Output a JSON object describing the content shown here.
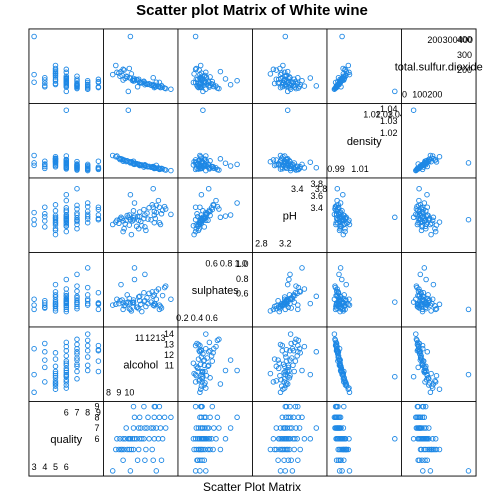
{
  "chart_data": {
    "type": "scatter",
    "title": "Scatter plot Matrix of White wine",
    "xlabel": "Scatter Plot Matrix",
    "point_color": "#1E88E5",
    "variables": [
      {
        "key": "quality",
        "label": "quality",
        "range": [
          2.8,
          9.2
        ],
        "ticks_lo": [
          "3",
          "4",
          "5",
          "6"
        ],
        "ticks_lo_values": [
          3,
          4,
          5,
          6
        ],
        "ticks_hi": [
          "6",
          "7",
          "8",
          "9"
        ],
        "ticks_hi_values": [
          6,
          7,
          8,
          9
        ],
        "ticks_hi_row": [
          "6",
          "7",
          "8",
          "9"
        ],
        "ticks_hi_row_values": [
          6,
          7,
          8,
          9
        ]
      },
      {
        "key": "alcohol",
        "label": "alcohol",
        "range": [
          7.8,
          14.4
        ],
        "ticks_lo": [
          "8",
          "9",
          "10"
        ],
        "ticks_lo_values": [
          8,
          9,
          10
        ],
        "ticks_hi": [
          "11",
          "12",
          "13"
        ],
        "ticks_hi_values": [
          11,
          12,
          13
        ],
        "ticks_hi_row": [
          "11",
          "12",
          "13",
          "14"
        ],
        "ticks_hi_row_values": [
          11,
          12,
          13,
          14
        ]
      },
      {
        "key": "sulphates",
        "label": "sulphates",
        "range": [
          0.18,
          1.12
        ],
        "ticks_lo": [
          "0.2",
          "0.4",
          "0.6"
        ],
        "ticks_lo_values": [
          0.2,
          0.4,
          0.6
        ],
        "ticks_hi": [
          "0.6",
          "0.8",
          "1.0"
        ],
        "ticks_hi_values": [
          0.6,
          0.8,
          1.0
        ],
        "ticks_hi_row": [
          "0.6",
          "0.8",
          "1.0"
        ],
        "ticks_hi_row_values": [
          0.6,
          0.8,
          1.0
        ]
      },
      {
        "key": "pH",
        "label": "pH",
        "range": [
          2.7,
          3.85
        ],
        "ticks_lo": [
          "2.8",
          "3.2"
        ],
        "ticks_lo_values": [
          2.8,
          3.2
        ],
        "ticks_hi": [
          "3.4",
          "3.8"
        ],
        "ticks_hi_values": [
          3.4,
          3.8
        ],
        "ticks_hi_row": [
          "3.4",
          "3.6",
          "3.8"
        ],
        "ticks_hi_row_values": [
          3.4,
          3.6,
          3.8
        ]
      },
      {
        "key": "density",
        "label": "density",
        "range": [
          0.985,
          1.042
        ],
        "ticks_lo": [
          "0.99",
          "1.01"
        ],
        "ticks_lo_values": [
          0.99,
          1.01
        ],
        "ticks_hi": [
          "1.02",
          "1.03",
          "1.04"
        ],
        "ticks_hi_values": [
          1.02,
          1.03,
          1.04
        ],
        "ticks_hi_row": [
          "1.02",
          "1.03",
          "1.04"
        ],
        "ticks_hi_row_values": [
          1.02,
          1.03,
          1.04
        ]
      },
      {
        "key": "tsd",
        "label": "total.sulfur.dioxide",
        "range": [
          0,
          450
        ],
        "ticks_lo": [
          "0",
          "100",
          "200"
        ],
        "ticks_lo_values": [
          0,
          100,
          200
        ],
        "ticks_hi": [
          "200",
          "300",
          "400"
        ],
        "ticks_hi_values": [
          200,
          300,
          400
        ],
        "ticks_hi_row": [
          "200",
          "300",
          "400"
        ],
        "ticks_hi_row_values": [
          200,
          300,
          400
        ]
      }
    ],
    "series": [
      {
        "quality": 3,
        "alcohol": 8.4,
        "sulphates": 0.44,
        "pH": 3.12,
        "density": 1.0012,
        "tsd": 170
      },
      {
        "quality": 3,
        "alcohol": 10.1,
        "sulphates": 0.38,
        "pH": 3.2,
        "density": 0.9951,
        "tsd": 420
      },
      {
        "quality": 3,
        "alcohol": 12.6,
        "sulphates": 0.52,
        "pH": 3.32,
        "density": 0.993,
        "tsd": 120
      },
      {
        "quality": 4,
        "alcohol": 9.4,
        "sulphates": 0.47,
        "pH": 3.18,
        "density": 0.9965,
        "tsd": 135
      },
      {
        "quality": 4,
        "alcohol": 10.8,
        "sulphates": 0.41,
        "pH": 3.25,
        "density": 0.9942,
        "tsd": 90
      },
      {
        "quality": 4,
        "alcohol": 11.5,
        "sulphates": 0.5,
        "pH": 3.08,
        "density": 0.9935,
        "tsd": 115
      },
      {
        "quality": 4,
        "alcohol": 12.3,
        "sulphates": 0.44,
        "pH": 3.41,
        "density": 0.9921,
        "tsd": 150
      },
      {
        "quality": 4,
        "alcohol": 13.1,
        "sulphates": 0.4,
        "pH": 3.3,
        "density": 0.9905,
        "tsd": 98
      },
      {
        "quality": 5,
        "alcohol": 9.0,
        "sulphates": 0.46,
        "pH": 3.14,
        "density": 0.999,
        "tsd": 180
      },
      {
        "quality": 5,
        "alcohol": 9.3,
        "sulphates": 0.51,
        "pH": 3.22,
        "density": 0.9982,
        "tsd": 165
      },
      {
        "quality": 5,
        "alcohol": 9.5,
        "sulphates": 0.43,
        "pH": 3.05,
        "density": 0.9975,
        "tsd": 200
      },
      {
        "quality": 5,
        "alcohol": 9.8,
        "sulphates": 0.58,
        "pH": 3.27,
        "density": 0.9968,
        "tsd": 155
      },
      {
        "quality": 5,
        "alcohol": 10.0,
        "sulphates": 0.39,
        "pH": 3.11,
        "density": 0.9959,
        "tsd": 210
      },
      {
        "quality": 5,
        "alcohol": 10.4,
        "sulphates": 0.48,
        "pH": 3.35,
        "density": 0.995,
        "tsd": 140
      },
      {
        "quality": 5,
        "alcohol": 10.9,
        "sulphates": 0.55,
        "pH": 3.19,
        "density": 0.9941,
        "tsd": 128
      },
      {
        "quality": 5,
        "alcohol": 11.6,
        "sulphates": 0.42,
        "pH": 3.02,
        "density": 0.9929,
        "tsd": 112
      },
      {
        "quality": 5,
        "alcohol": 12.2,
        "sulphates": 0.62,
        "pH": 3.45,
        "density": 0.9918,
        "tsd": 105
      },
      {
        "quality": 5,
        "alcohol": 8.7,
        "sulphates": 0.45,
        "pH": 3.16,
        "density": 1.0002,
        "tsd": 230
      },
      {
        "quality": 5,
        "alcohol": 9.2,
        "sulphates": 0.72,
        "pH": 3.24,
        "density": 0.9985,
        "tsd": 190
      },
      {
        "quality": 5,
        "alcohol": 10.2,
        "sulphates": 0.36,
        "pH": 2.95,
        "density": 0.9961,
        "tsd": 175
      },
      {
        "quality": 6,
        "alcohol": 9.1,
        "sulphates": 0.5,
        "pH": 3.21,
        "density": 0.9979,
        "tsd": 160
      },
      {
        "quality": 6,
        "alcohol": 9.6,
        "sulphates": 0.44,
        "pH": 3.13,
        "density": 0.997,
        "tsd": 145
      },
      {
        "quality": 6,
        "alcohol": 10.0,
        "sulphates": 0.53,
        "pH": 3.28,
        "density": 0.996,
        "tsd": 150
      },
      {
        "quality": 6,
        "alcohol": 10.3,
        "sulphates": 0.47,
        "pH": 3.18,
        "density": 0.9953,
        "tsd": 132
      },
      {
        "quality": 6,
        "alcohol": 10.7,
        "sulphates": 0.41,
        "pH": 3.09,
        "density": 0.9945,
        "tsd": 138
      },
      {
        "quality": 6,
        "alcohol": 11.0,
        "sulphates": 0.56,
        "pH": 3.33,
        "density": 0.9937,
        "tsd": 120
      },
      {
        "quality": 6,
        "alcohol": 11.4,
        "sulphates": 0.49,
        "pH": 3.22,
        "density": 0.9931,
        "tsd": 126
      },
      {
        "quality": 6,
        "alcohol": 11.9,
        "sulphates": 0.6,
        "pH": 3.4,
        "density": 0.9922,
        "tsd": 110
      },
      {
        "quality": 6,
        "alcohol": 12.4,
        "sulphates": 0.43,
        "pH": 3.15,
        "density": 0.9915,
        "tsd": 102
      },
      {
        "quality": 6,
        "alcohol": 12.8,
        "sulphates": 0.66,
        "pH": 3.52,
        "density": 0.9909,
        "tsd": 95
      },
      {
        "quality": 6,
        "alcohol": 9.4,
        "sulphates": 0.38,
        "pH": 3.0,
        "density": 0.9976,
        "tsd": 205
      },
      {
        "quality": 6,
        "alcohol": 10.5,
        "sulphates": 0.79,
        "pH": 3.26,
        "density": 0.9948,
        "tsd": 142
      },
      {
        "quality": 6,
        "alcohol": 11.2,
        "sulphates": 0.35,
        "pH": 3.1,
        "density": 0.9934,
        "tsd": 118
      },
      {
        "quality": 6,
        "alcohol": 10.1,
        "sulphates": 0.46,
        "pH": 3.62,
        "density": 0.9957,
        "tsd": 148
      },
      {
        "quality": 6,
        "alcohol": 8.8,
        "sulphates": 0.52,
        "pH": 3.19,
        "density": 1.0008,
        "tsd": 185
      },
      {
        "quality": 6,
        "alcohol": 9.9,
        "sulphates": 0.48,
        "pH": 3.24,
        "density": 1.0389,
        "tsd": 60
      },
      {
        "quality": 6,
        "alcohol": 13.2,
        "sulphates": 0.57,
        "pH": 3.36,
        "density": 0.9901,
        "tsd": 88
      },
      {
        "quality": 7,
        "alcohol": 10.4,
        "sulphates": 0.51,
        "pH": 3.23,
        "density": 0.9942,
        "tsd": 128
      },
      {
        "quality": 7,
        "alcohol": 11.1,
        "sulphates": 0.45,
        "pH": 3.17,
        "density": 0.993,
        "tsd": 115
      },
      {
        "quality": 7,
        "alcohol": 11.7,
        "sulphates": 0.54,
        "pH": 3.31,
        "density": 0.9921,
        "tsd": 108
      },
      {
        "quality": 7,
        "alcohol": 12.1,
        "sulphates": 0.48,
        "pH": 3.2,
        "density": 0.9914,
        "tsd": 100
      },
      {
        "quality": 7,
        "alcohol": 12.6,
        "sulphates": 0.63,
        "pH": 3.44,
        "density": 0.9906,
        "tsd": 92
      },
      {
        "quality": 7,
        "alcohol": 13.0,
        "sulphates": 0.42,
        "pH": 3.12,
        "density": 0.9899,
        "tsd": 85
      },
      {
        "quality": 7,
        "alcohol": 13.5,
        "sulphates": 0.7,
        "pH": 3.38,
        "density": 0.9892,
        "tsd": 78
      },
      {
        "quality": 7,
        "alcohol": 10.9,
        "sulphates": 0.39,
        "pH": 3.05,
        "density": 0.9935,
        "tsd": 140
      },
      {
        "quality": 7,
        "alcohol": 11.5,
        "sulphates": 0.86,
        "pH": 3.28,
        "density": 0.9925,
        "tsd": 104
      },
      {
        "quality": 7,
        "alcohol": 12.3,
        "sulphates": 0.56,
        "pH": 3.72,
        "density": 0.9911,
        "tsd": 96
      },
      {
        "quality": 7,
        "alcohol": 9.7,
        "sulphates": 0.47,
        "pH": 3.19,
        "density": 0.9962,
        "tsd": 160
      },
      {
        "quality": 8,
        "alcohol": 11.0,
        "sulphates": 0.5,
        "pH": 3.25,
        "density": 0.9928,
        "tsd": 118
      },
      {
        "quality": 8,
        "alcohol": 11.8,
        "sulphates": 0.46,
        "pH": 3.21,
        "density": 0.9918,
        "tsd": 106
      },
      {
        "quality": 8,
        "alcohol": 12.4,
        "sulphates": 0.58,
        "pH": 3.34,
        "density": 0.9909,
        "tsd": 98
      },
      {
        "quality": 8,
        "alcohol": 12.9,
        "sulphates": 0.44,
        "pH": 3.15,
        "density": 0.9902,
        "tsd": 90
      },
      {
        "quality": 8,
        "alcohol": 13.4,
        "sulphates": 0.68,
        "pH": 3.42,
        "density": 0.9895,
        "tsd": 82
      },
      {
        "quality": 8,
        "alcohol": 14.0,
        "sulphates": 0.52,
        "pH": 3.29,
        "density": 0.9887,
        "tsd": 74
      },
      {
        "quality": 8,
        "alcohol": 10.5,
        "sulphates": 0.95,
        "pH": 3.48,
        "density": 0.9938,
        "tsd": 130
      },
      {
        "quality": 9,
        "alcohol": 12.4,
        "sulphates": 0.46,
        "pH": 3.28,
        "density": 0.9904,
        "tsd": 85
      },
      {
        "quality": 9,
        "alcohol": 12.9,
        "sulphates": 0.38,
        "pH": 3.41,
        "density": 0.9897,
        "tsd": 119
      },
      {
        "quality": 9,
        "alcohol": 10.4,
        "sulphates": 0.47,
        "pH": 3.2,
        "density": 0.9965,
        "tsd": 139
      },
      {
        "quality": 9,
        "alcohol": 11.4,
        "sulphates": 0.61,
        "pH": 3.37,
        "density": 0.9916,
        "tsd": 124
      },
      {
        "quality": 9,
        "alcohol": 12.5,
        "sulphates": 0.45,
        "pH": 3.22,
        "density": 0.9906,
        "tsd": 90
      }
    ]
  }
}
